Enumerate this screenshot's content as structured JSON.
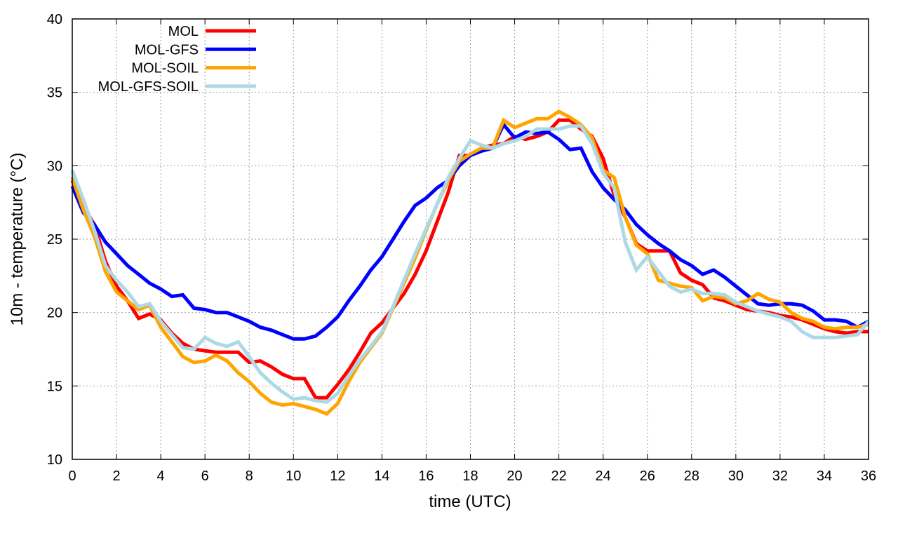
{
  "chart_data": {
    "type": "line",
    "title": "",
    "xlabel": "time (UTC)",
    "ylabel": "10m - temperature (°C)",
    "xlim": [
      0,
      36
    ],
    "ylim": [
      10,
      40
    ],
    "xticks": [
      0,
      2,
      4,
      6,
      8,
      10,
      12,
      14,
      16,
      18,
      20,
      22,
      24,
      26,
      28,
      30,
      32,
      34,
      36
    ],
    "yticks": [
      10,
      15,
      20,
      25,
      30,
      35,
      40
    ],
    "grid": true,
    "legend_position": "top-left",
    "x_step": 0.5,
    "series": [
      {
        "name": "MOL",
        "color": "#ff0000",
        "values": [
          29.0,
          27.2,
          26.0,
          23.5,
          21.8,
          20.8,
          19.6,
          19.9,
          19.5,
          18.6,
          17.9,
          17.5,
          17.4,
          17.3,
          17.3,
          17.3,
          16.6,
          16.7,
          16.3,
          15.8,
          15.5,
          15.5,
          14.2,
          14.2,
          15.1,
          16.1,
          17.3,
          18.6,
          19.3,
          20.3,
          21.3,
          22.6,
          24.2,
          26.2,
          28.2,
          30.7,
          30.7,
          31.2,
          31.4,
          31.5,
          32.0,
          31.8,
          32.0,
          32.3,
          33.1,
          33.1,
          32.5,
          32.0,
          30.5,
          28.0,
          26.5,
          24.7,
          24.2,
          24.2,
          24.2,
          22.7,
          22.2,
          21.9,
          21.0,
          20.8,
          20.5,
          20.2,
          20.1,
          20.0,
          19.8,
          19.7,
          19.5,
          19.2,
          18.9,
          18.7,
          18.6,
          18.7,
          18.7
        ]
      },
      {
        "name": "MOL-GFS",
        "color": "#0000ff",
        "values": [
          28.6,
          26.8,
          26.0,
          24.8,
          24.0,
          23.2,
          22.6,
          22.0,
          21.6,
          21.1,
          21.2,
          20.3,
          20.2,
          20.0,
          20.0,
          19.7,
          19.4,
          19.0,
          18.8,
          18.5,
          18.2,
          18.2,
          18.4,
          19.0,
          19.7,
          20.8,
          21.8,
          22.9,
          23.8,
          25.0,
          26.2,
          27.3,
          27.8,
          28.5,
          29.0,
          30.0,
          30.7,
          31.0,
          31.2,
          32.8,
          31.9,
          32.3,
          32.2,
          32.3,
          31.8,
          31.1,
          31.2,
          29.6,
          28.5,
          27.7,
          27.0,
          26.0,
          25.3,
          24.7,
          24.2,
          23.6,
          23.2,
          22.6,
          22.9,
          22.4,
          21.8,
          21.2,
          20.6,
          20.5,
          20.6,
          20.6,
          20.5,
          20.1,
          19.5,
          19.5,
          19.4,
          19.0,
          19.4
        ]
      },
      {
        "name": "MOL-SOIL",
        "color": "#ffa500",
        "values": [
          29.2,
          27.0,
          25.2,
          22.8,
          21.4,
          20.8,
          20.2,
          20.5,
          19.0,
          18.0,
          17.0,
          16.6,
          16.7,
          17.1,
          16.7,
          15.9,
          15.3,
          14.5,
          13.9,
          13.7,
          13.8,
          13.6,
          13.4,
          13.1,
          13.8,
          15.3,
          16.6,
          17.6,
          18.6,
          20.3,
          22.0,
          23.7,
          25.6,
          27.4,
          29.0,
          30.3,
          30.8,
          31.2,
          31.2,
          33.1,
          32.6,
          32.9,
          33.2,
          33.2,
          33.7,
          33.3,
          32.8,
          31.9,
          29.7,
          29.2,
          26.5,
          24.6,
          24.0,
          22.2,
          22.0,
          21.8,
          21.7,
          20.8,
          21.1,
          21.0,
          20.6,
          20.8,
          21.3,
          20.9,
          20.7,
          20.0,
          19.6,
          19.4,
          19.0,
          18.9,
          19.0,
          19.0,
          19.2
        ]
      },
      {
        "name": "MOL-GFS-SOIL",
        "color": "#add8e6",
        "values": [
          29.7,
          27.7,
          25.6,
          23.2,
          22.2,
          21.4,
          20.4,
          20.6,
          19.4,
          18.5,
          17.6,
          17.5,
          18.3,
          17.9,
          17.7,
          18.0,
          17.0,
          15.9,
          15.2,
          14.6,
          14.1,
          14.2,
          14.0,
          13.9,
          14.5,
          15.7,
          16.8,
          17.7,
          18.7,
          20.4,
          22.2,
          24.0,
          25.7,
          27.4,
          29.2,
          30.5,
          31.7,
          31.4,
          31.2,
          31.5,
          31.7,
          32.0,
          32.5,
          32.5,
          32.5,
          32.7,
          32.7,
          31.5,
          29.5,
          28.5,
          24.8,
          22.9,
          23.8,
          22.8,
          21.8,
          21.4,
          21.6,
          21.3,
          21.3,
          21.2,
          20.7,
          20.4,
          20.1,
          19.9,
          19.7,
          19.4,
          18.7,
          18.3,
          18.3,
          18.3,
          18.4,
          18.5,
          19.4
        ]
      }
    ]
  }
}
